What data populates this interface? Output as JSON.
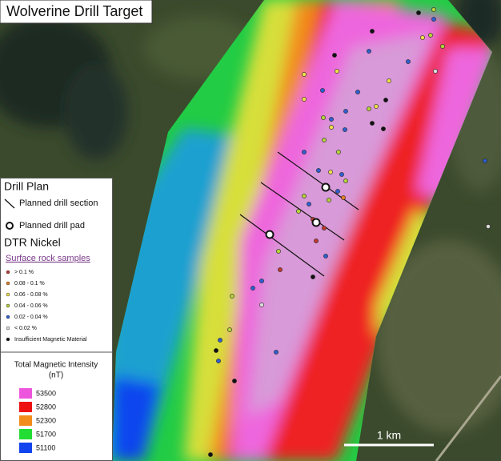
{
  "title": "Wolverine Drill Target",
  "legend": {
    "heading": "Drill Plan",
    "drill_section": "Planned drill section",
    "drill_pad": "Planned drill pad",
    "company": "DTR Nickel",
    "samples_heading": "Surface rock samples",
    "sample_classes": [
      {
        "label": "> 0.1 %",
        "color": "#c0392b"
      },
      {
        "label": "0.08 - 0.1 %",
        "color": "#e67e22"
      },
      {
        "label": "0.06 - 0.08 %",
        "color": "#f1e04a"
      },
      {
        "label": "0.04 - 0.06 %",
        "color": "#b5d33a"
      },
      {
        "label": "0.02 - 0.04 %",
        "color": "#2f5fd0"
      },
      {
        "label": "< 0.02 %",
        "color": "#dddddd"
      },
      {
        "label": "Insufficient Magnetic Material",
        "color": "#111111"
      }
    ]
  },
  "magnetic_legend": {
    "title": "Total Magnetic Intensity",
    "unit": "(nT)",
    "classes": [
      {
        "label": "53500",
        "color": "#ee55dd"
      },
      {
        "label": "52800",
        "color": "#ee1111"
      },
      {
        "label": "52300",
        "color": "#f28c1a"
      },
      {
        "label": "51700",
        "color": "#22dd33"
      },
      {
        "label": "51100",
        "color": "#1144ee"
      }
    ]
  },
  "scale_bar": "1 km"
}
